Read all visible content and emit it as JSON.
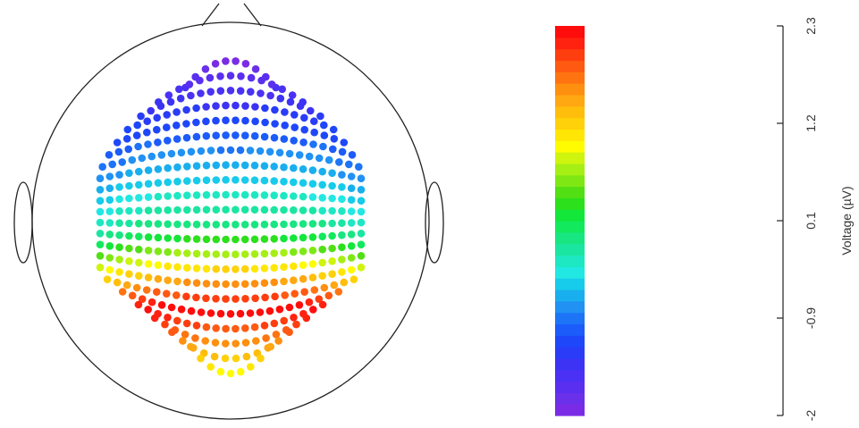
{
  "chart_data": {
    "type": "heatmap",
    "title": "",
    "colorbar": {
      "label": "Voltage (µV)",
      "ticks": [
        "-2",
        "-0.9",
        "0.1",
        "1.2",
        "2.3"
      ],
      "range": [
        -2,
        2.3
      ],
      "colors": [
        "#7a2be6",
        "#6a30ea",
        "#5a2ff0",
        "#4a31f3",
        "#3c33f5",
        "#2a3cf8",
        "#1f47fa",
        "#1c5cfa",
        "#1d74f7",
        "#2192f3",
        "#19afee",
        "#17cbea",
        "#22e8e3",
        "#1de8c2",
        "#1ae6a2",
        "#18e681",
        "#12e95d",
        "#12e73a",
        "#2ce01c",
        "#52df14",
        "#7fe814",
        "#a6ef14",
        "#cff40e",
        "#fffb00",
        "#ffe605",
        "#ffd10a",
        "#ffbe0c",
        "#ffa812",
        "#ff8f0f",
        "#ff7410",
        "#ff5a12",
        "#ff3e0f",
        "#ff2210",
        "#ff0c0c"
      ]
    },
    "electrode_field": {
      "rows": 22,
      "description_of_pattern": ""
    }
  }
}
